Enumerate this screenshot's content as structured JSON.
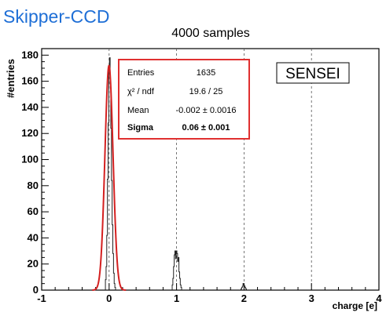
{
  "overlay_label": "Skipper-CCD",
  "chart_data": {
    "type": "histogram",
    "title": "4000 samples",
    "xlabel": "charge [e]",
    "ylabel": "#entries",
    "xlim": [
      -1,
      4
    ],
    "ylim": [
      0,
      185
    ],
    "xticks": [
      -1,
      0,
      1,
      2,
      3,
      4
    ],
    "yticks": [
      0,
      20,
      40,
      60,
      80,
      100,
      120,
      140,
      160,
      180
    ],
    "grid": "vertical dashed at integer charge values",
    "bin_width": 0.01,
    "histogram_bins": [
      {
        "x": -0.05,
        "y": 8
      },
      {
        "x": -0.04,
        "y": 18
      },
      {
        "x": -0.03,
        "y": 42
      },
      {
        "x": -0.02,
        "y": 85
      },
      {
        "x": -0.01,
        "y": 128
      },
      {
        "x": 0.0,
        "y": 168
      },
      {
        "x": 0.01,
        "y": 178
      },
      {
        "x": 0.02,
        "y": 158
      },
      {
        "x": 0.03,
        "y": 124
      },
      {
        "x": 0.04,
        "y": 84
      },
      {
        "x": 0.05,
        "y": 50
      },
      {
        "x": 0.06,
        "y": 28
      },
      {
        "x": 0.07,
        "y": 13
      },
      {
        "x": 0.08,
        "y": 5
      },
      {
        "x": 0.09,
        "y": 2
      },
      {
        "x": 0.94,
        "y": 4
      },
      {
        "x": 0.95,
        "y": 9
      },
      {
        "x": 0.96,
        "y": 18
      },
      {
        "x": 0.97,
        "y": 27
      },
      {
        "x": 0.98,
        "y": 30
      },
      {
        "x": 0.99,
        "y": 24
      },
      {
        "x": 1.0,
        "y": 30
      },
      {
        "x": 1.01,
        "y": 28
      },
      {
        "x": 1.02,
        "y": 22
      },
      {
        "x": 1.03,
        "y": 25
      },
      {
        "x": 1.04,
        "y": 14
      },
      {
        "x": 1.05,
        "y": 9
      },
      {
        "x": 1.06,
        "y": 4
      },
      {
        "x": 1.07,
        "y": 2
      },
      {
        "x": 1.96,
        "y": 1
      },
      {
        "x": 1.97,
        "y": 2
      },
      {
        "x": 1.98,
        "y": 3
      },
      {
        "x": 1.99,
        "y": 5
      },
      {
        "x": 2.0,
        "y": 4
      },
      {
        "x": 2.01,
        "y": 3
      },
      {
        "x": 2.02,
        "y": 2
      },
      {
        "x": 2.03,
        "y": 1
      }
    ],
    "fit": {
      "color": "#d42020",
      "function": "gaussian",
      "amplitude": 172,
      "mean": -0.002,
      "sigma": 0.06,
      "x_range": [
        -0.25,
        0.25
      ]
    },
    "stats_box": {
      "border_color": "#e03030",
      "rows": [
        {
          "label": "Entries",
          "value": "1635",
          "bold": false
        },
        {
          "label": "χ² / ndf",
          "value": "19.6 / 25",
          "bold": false
        },
        {
          "label": "Mean",
          "value": "-0.002 ± 0.0016",
          "bold": false
        },
        {
          "label": "Sigma",
          "value": "0.06 ± 0.001",
          "bold": true
        }
      ]
    },
    "annotation": "SENSEI",
    "colors": {
      "histogram": "#222222",
      "overlay_label": "#1f6fd6"
    }
  }
}
